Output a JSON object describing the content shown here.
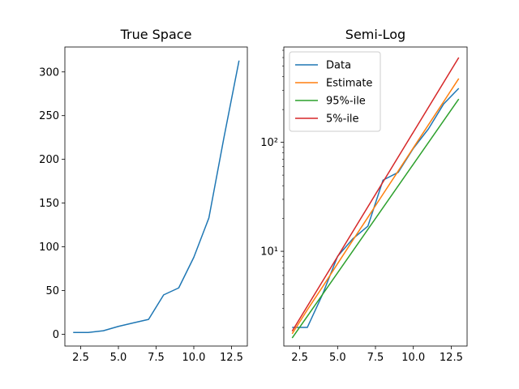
{
  "chart_data": [
    {
      "type": "line",
      "title": "True Space",
      "xlabel": "",
      "ylabel": "",
      "yscale": "linear",
      "xlim": [
        1.45,
        13.55
      ],
      "ylim": [
        -13.5,
        328.5
      ],
      "xticks": [
        2.5,
        5.0,
        7.5,
        10.0,
        12.5
      ],
      "xtick_labels": [
        "2.5",
        "5.0",
        "7.5",
        "10.0",
        "12.5"
      ],
      "yticks": [
        0,
        50,
        100,
        150,
        200,
        250,
        300
      ],
      "ytick_labels": [
        "0",
        "50",
        "100",
        "150",
        "200",
        "250",
        "300"
      ],
      "grid": false,
      "series": [
        {
          "color": "#1f77b4",
          "x": [
            2,
            3,
            4,
            5,
            6,
            7,
            8,
            9,
            10,
            11,
            12,
            13
          ],
          "y": [
            2,
            2,
            4,
            9,
            13,
            17,
            45,
            53,
            88,
            133,
            225,
            313
          ]
        }
      ]
    },
    {
      "type": "line",
      "title": "Semi-Log",
      "xlabel": "",
      "ylabel": "",
      "yscale": "log",
      "xlim": [
        1.45,
        13.55
      ],
      "ylim": [
        1.35,
        750
      ],
      "xticks": [
        2.5,
        5.0,
        7.5,
        10.0,
        12.5
      ],
      "xtick_labels": [
        "2.5",
        "5.0",
        "7.5",
        "10.0",
        "12.5"
      ],
      "yticks": [
        10,
        100
      ],
      "ytick_labels": [
        "10¹",
        "10²"
      ],
      "grid": false,
      "legend": "top-left",
      "series": [
        {
          "name": "Data",
          "color": "#1f77b4",
          "x": [
            2,
            3,
            4,
            5,
            6,
            7,
            8,
            9,
            10,
            11,
            12,
            13
          ],
          "y": [
            2,
            2,
            4,
            9,
            13,
            17,
            45,
            53,
            88,
            133,
            225,
            313
          ]
        },
        {
          "name": "Estimate",
          "color": "#ff7f0e",
          "x": [
            2,
            3,
            4,
            5,
            6,
            7,
            8,
            9,
            10,
            11,
            12,
            13
          ],
          "y": [
            1.75,
            2.9,
            4.7,
            7.7,
            12.6,
            20.5,
            33.5,
            54.5,
            89,
            145,
            236,
            385
          ]
        },
        {
          "name": "95%-ile",
          "color": "#2ca02c",
          "x": [
            2,
            13
          ],
          "y": [
            1.6,
            250
          ]
        },
        {
          "name": "5%-ile",
          "color": "#d62728",
          "x": [
            2,
            13
          ],
          "y": [
            1.85,
            600
          ]
        }
      ]
    }
  ]
}
